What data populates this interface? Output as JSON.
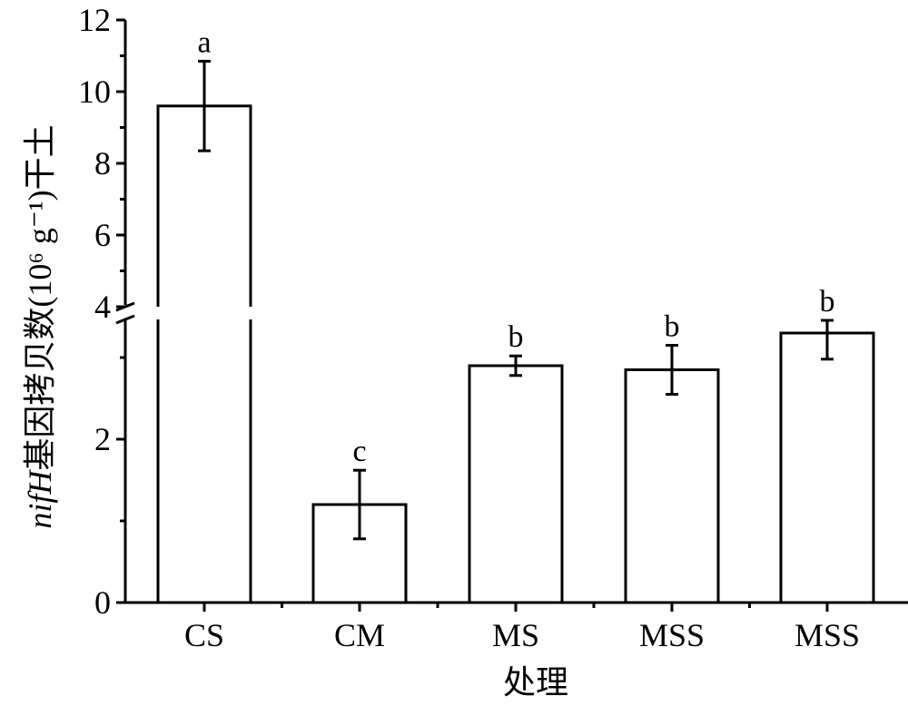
{
  "chart_data": {
    "type": "bar",
    "categories": [
      "CS",
      "CM",
      "MS",
      "MSS",
      "MSS"
    ],
    "values": [
      9.6,
      1.2,
      2.9,
      2.85,
      3.3
    ],
    "errors": [
      1.25,
      0.42,
      0.12,
      0.3,
      0.32
    ],
    "significance": [
      "a",
      "c",
      "b",
      "b",
      "b"
    ],
    "xlabel": "处理",
    "ylabel_italic": "nifH",
    "ylabel_rest": "基因拷贝数(10⁶ g⁻¹)干土",
    "y_ticks_lower": [
      "0",
      "2"
    ],
    "y_ticks_upper": [
      "4",
      "6",
      "8",
      "10",
      "12"
    ],
    "y_break": [
      3.3,
      4
    ],
    "lower_range": [
      0,
      3.6
    ],
    "upper_range": [
      4,
      12
    ],
    "bar_fill": "#ffffff",
    "bar_stroke": "#000000",
    "grid": false,
    "legend": "none"
  }
}
